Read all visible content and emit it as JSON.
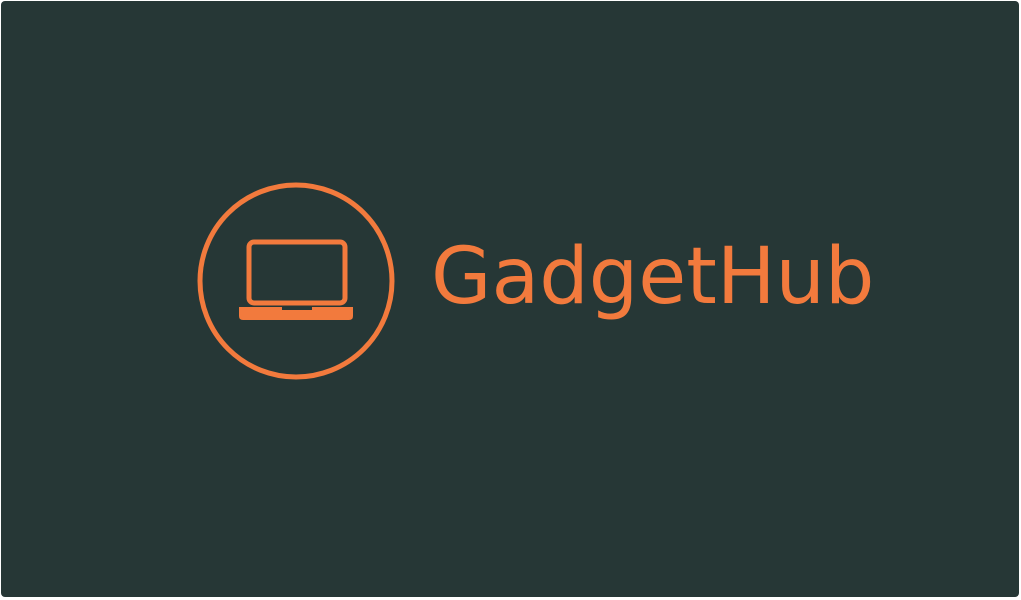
{
  "brand": {
    "name": "GadgetHub",
    "accent_color": "#f27a3d",
    "background_color": "#263736",
    "logo_icon": "laptop-icon"
  }
}
